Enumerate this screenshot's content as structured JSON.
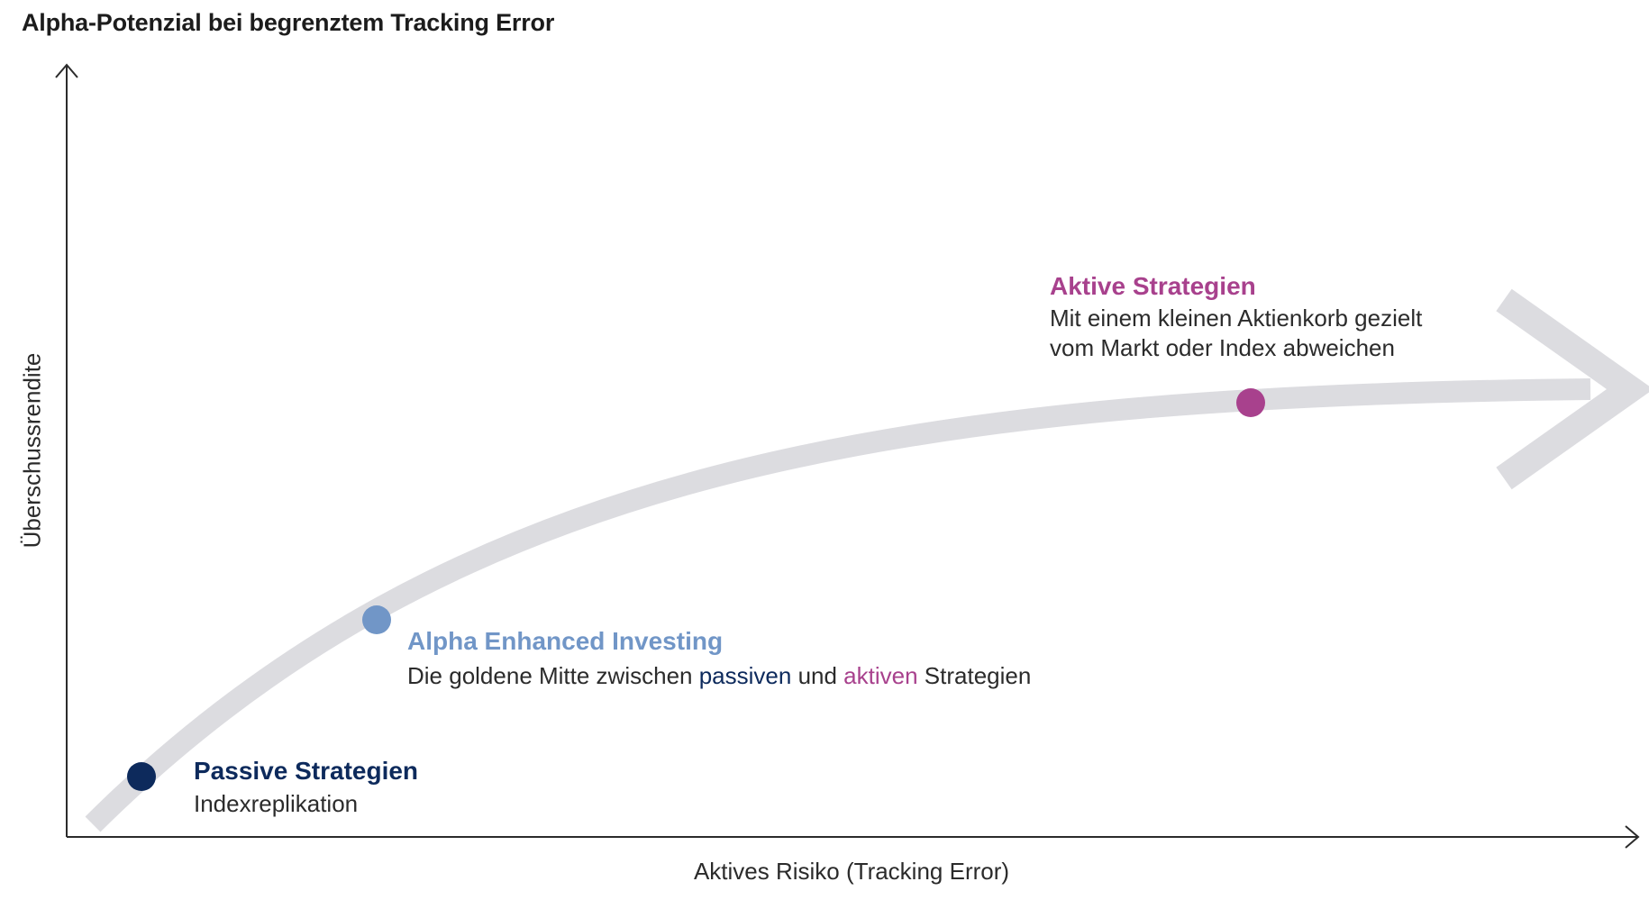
{
  "title": "Alpha-Potenzial bei begrenztem Tracking Error",
  "axes": {
    "x_label": "Aktives Risiko (Tracking Error)",
    "y_label": "Überschussrendite"
  },
  "colors": {
    "passive": "#0d2a5c",
    "enhanced": "#7196c7",
    "active": "#a8418d",
    "curve": "#dcdce0",
    "axis": "#2b2b2b"
  },
  "points": {
    "passive": {
      "heading": "Passive Strategien",
      "description": "Indexreplikation"
    },
    "enhanced": {
      "heading": "Alpha Enhanced Investing",
      "desc_part1": "Die goldene Mitte zwischen ",
      "desc_passive": "passiven",
      "desc_part2": " und ",
      "desc_active": "aktiven",
      "desc_part3": " Strategien"
    },
    "active": {
      "heading": "Aktive Strategien",
      "desc_line1": "Mit einem kleinen Aktienkorb gezielt",
      "desc_line2": "vom Markt oder Index abweichen"
    }
  }
}
